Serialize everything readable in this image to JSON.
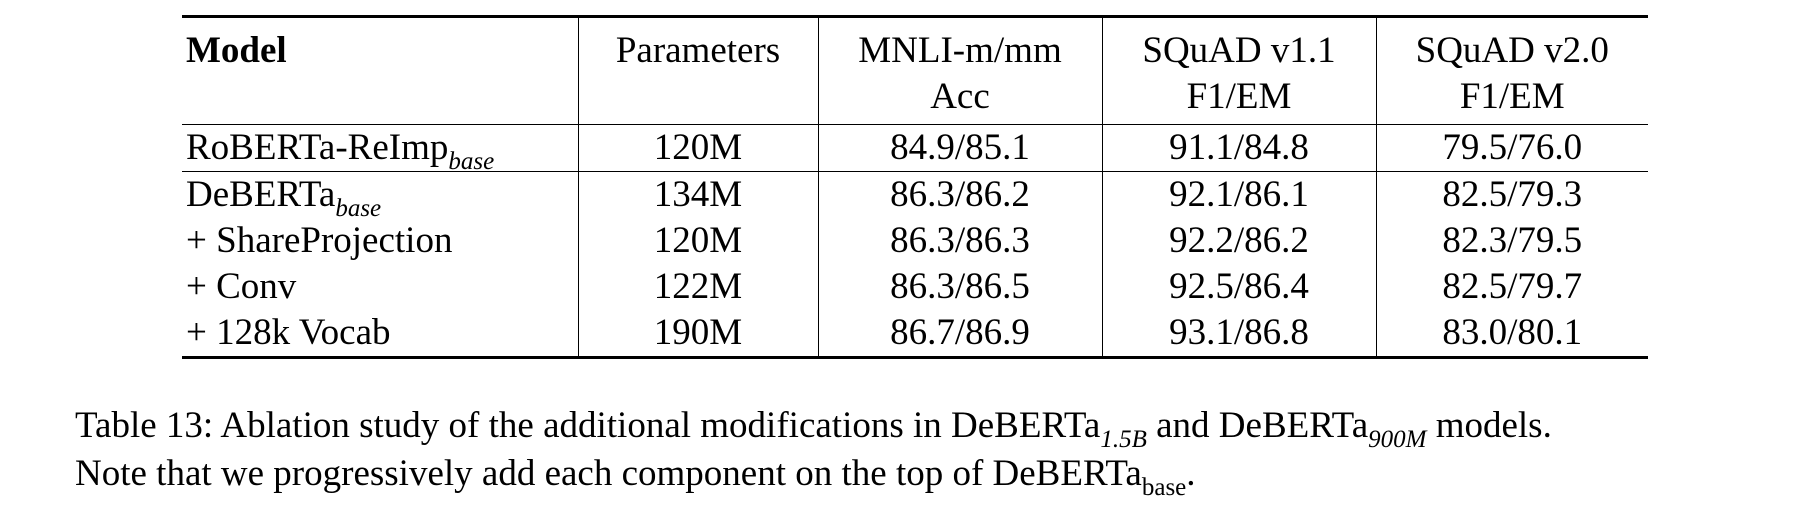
{
  "table": {
    "columns": [
      {
        "lines": [
          "Model"
        ]
      },
      {
        "lines": [
          "Parameters"
        ]
      },
      {
        "lines": [
          "MNLI-m/mm",
          "Acc"
        ]
      },
      {
        "lines": [
          "SQuAD v1.1",
          "F1/EM"
        ]
      },
      {
        "lines": [
          "SQuAD v2.0",
          "F1/EM"
        ]
      }
    ],
    "rows": [
      {
        "model": "RoBERTa-ReImp",
        "model_sub": "base",
        "params": "120M",
        "mnli": "84.9/85.1",
        "squad11": "91.1/84.8",
        "squad20": "79.5/76.0"
      },
      {
        "model": "DeBERTa",
        "model_sub": "base",
        "params": "134M",
        "mnli": "86.3/86.2",
        "squad11": "92.1/86.1",
        "squad20": "82.5/79.3"
      },
      {
        "model": "+ ShareProjection",
        "model_sub": "",
        "params": "120M",
        "mnli": "86.3/86.3",
        "squad11": "92.2/86.2",
        "squad20": "82.3/79.5"
      },
      {
        "model": "+ Conv",
        "model_sub": "",
        "params": "122M",
        "mnli": "86.3/86.5",
        "squad11": "92.5/86.4",
        "squad20": "82.5/79.7"
      },
      {
        "model": "+ 128k Vocab",
        "model_sub": "",
        "params": "190M",
        "mnli": "86.7/86.9",
        "squad11": "93.1/86.8",
        "squad20": "83.0/80.1"
      }
    ]
  },
  "caption": {
    "line1": {
      "t1": "Table 13: Ablation study of the additional modifications in DeBERTa",
      "s1": "1.5B",
      "t2": " and DeBERTa",
      "s2": "900M",
      "t3": " models."
    },
    "line2": {
      "t1": "Note that we progressively add each component on the top of DeBERTa",
      "s1": "base",
      "t2": "."
    }
  }
}
